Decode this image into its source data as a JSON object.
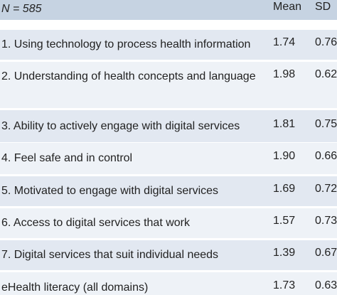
{
  "table": {
    "header": [
      "N = 585",
      "Mean",
      "SD"
    ],
    "rows": [
      [
        "1. Using technology to process health information",
        "1.74",
        "0.76"
      ],
      [
        "2. Understanding of health concepts and language",
        "1.98",
        "0.62"
      ],
      [
        "3. Ability to actively engage with digital services",
        "1.81",
        "0.75"
      ],
      [
        "4. Feel safe and in control",
        "1.90",
        "0.66"
      ],
      [
        "5. Motivated to engage with digital services",
        "1.69",
        "0.72"
      ],
      [
        "6. Access to digital services that work",
        "1.57",
        "0.73"
      ],
      [
        "7. Digital services that suit individual needs",
        "1.39",
        "0.67"
      ],
      [
        "eHealth literacy (all domains)",
        "1.73",
        "0.63"
      ]
    ]
  }
}
